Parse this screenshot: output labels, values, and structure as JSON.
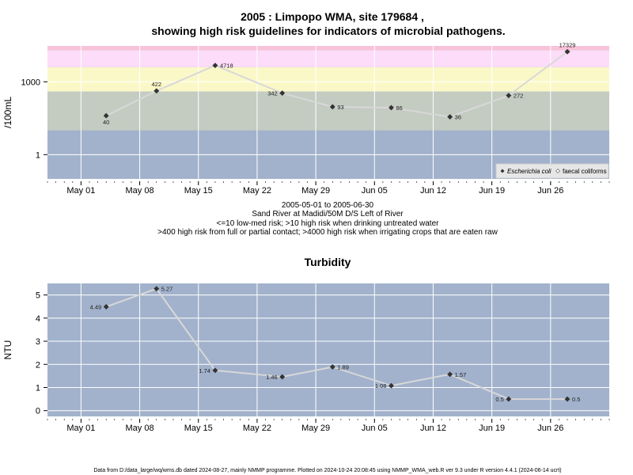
{
  "colors": {
    "panel_bg": "#a2b2cc",
    "band_low": "#a2b2cc",
    "band_medium": "#c4ccc2",
    "band_high": "#fbf8c8",
    "band_very_high": "#fcdcf8",
    "band_extreme": "#f8c2d8",
    "grid": "#ffffff",
    "line": "#d8d8d8",
    "point": "#333333"
  },
  "chart_data": [
    {
      "type": "line",
      "title_line1": "2005 : Limpopo WMA, site 179684 ,",
      "title_line2": "showing high risk guidelines for indicators of microbial pathogens.",
      "ylabel": "/100mL",
      "yscale": "log",
      "ylim": [
        0.1,
        30000
      ],
      "yticks": [
        1,
        1000
      ],
      "ytick_labels": [
        "1",
        "1000"
      ],
      "xlim": [
        "2005-04-27",
        "2005-07-03"
      ],
      "xticks": [
        "2005-05-01",
        "2005-05-08",
        "2005-05-15",
        "2005-05-22",
        "2005-05-29",
        "2005-06-05",
        "2005-06-12",
        "2005-06-19",
        "2005-06-26"
      ],
      "xtick_labels": [
        "May 01",
        "May 08",
        "May 15",
        "May 22",
        "May 29",
        "Jun 05",
        "Jun 12",
        "Jun 19",
        "Jun 26"
      ],
      "risk_bands": [
        {
          "from": 0.1,
          "to": 10
        },
        {
          "from": 10,
          "to": 400
        },
        {
          "from": 400,
          "to": 4000
        },
        {
          "from": 4000,
          "to": 20000
        },
        {
          "from": 20000,
          "to": 30000
        }
      ],
      "series": [
        {
          "name": "Escherichia coli",
          "x": [
            "2005-05-04",
            "2005-05-10",
            "2005-05-17",
            "2005-05-25",
            "2005-05-31",
            "2005-06-07",
            "2005-06-14",
            "2005-06-21",
            "2005-06-28"
          ],
          "values": [
            40,
            422,
            4718,
            342,
            93,
            86,
            36,
            272,
            17329
          ],
          "labels": [
            "40",
            "422",
            "4718",
            "342",
            "93",
            "86",
            "36",
            "272",
            "17329"
          ],
          "label_pos": [
            "below",
            "above",
            "right",
            "left",
            "right",
            "right",
            "right",
            "right",
            "above"
          ]
        }
      ],
      "legend": {
        "items": [
          "Escherichia coli",
          "faecal coliforms"
        ],
        "position": "bottom-right"
      },
      "caption": [
        "2005-05-01 to 2005-06-30",
        "Sand River at Madidi/50M D/S Left of River",
        "<=10 low-med risk; >10 high risk when drinking untreated water",
        ">400 high risk from full or partial contact; >4000 high risk when irrigating crops that are eaten raw"
      ]
    },
    {
      "type": "line",
      "title": "Turbidity",
      "ylabel": "NTU",
      "ylim": [
        -0.25,
        5.5
      ],
      "yticks": [
        0,
        1,
        2,
        3,
        4,
        5
      ],
      "ytick_labels": [
        "0",
        "1",
        "2",
        "3",
        "4",
        "5"
      ],
      "xlim": [
        "2005-04-27",
        "2005-07-03"
      ],
      "xticks": [
        "2005-05-01",
        "2005-05-08",
        "2005-05-15",
        "2005-05-22",
        "2005-05-29",
        "2005-06-05",
        "2005-06-12",
        "2005-06-19",
        "2005-06-26"
      ],
      "xtick_labels": [
        "May 01",
        "May 08",
        "May 15",
        "May 22",
        "May 29",
        "Jun 05",
        "Jun 12",
        "Jun 19",
        "Jun 26"
      ],
      "series": [
        {
          "x": [
            "2005-05-04",
            "2005-05-10",
            "2005-05-17",
            "2005-05-25",
            "2005-05-31",
            "2005-06-07",
            "2005-06-14",
            "2005-06-21",
            "2005-06-28"
          ],
          "values": [
            4.49,
            5.27,
            1.74,
            1.46,
            1.89,
            1.08,
            1.57,
            0.5,
            0.5
          ],
          "labels": [
            "4.49",
            "5.27",
            "1.74",
            "1.46",
            "1.89",
            "1.08",
            "1.57",
            "0.5",
            "0.5"
          ],
          "label_pos": [
            "left",
            "right",
            "left",
            "left",
            "right",
            "left",
            "right",
            "left",
            "right"
          ]
        }
      ]
    }
  ],
  "footer": "Data from D:/data_large/wq/wms.db dated 2024-08-27, mainly NMMP programme. Plotted on 2024-10-24 20:08:45 using NMMP_WMA_web.R ver 9.3 under R version 4.4.1 (2024-06-14 ucrt)"
}
